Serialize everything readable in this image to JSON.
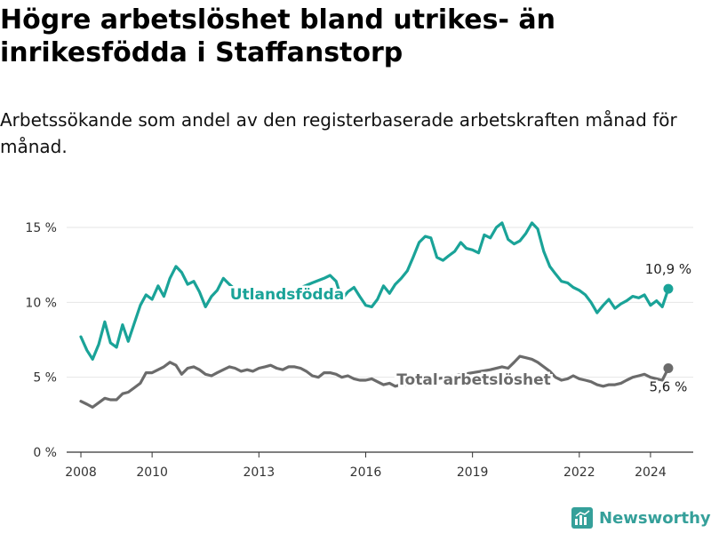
{
  "title": "Högre arbetslöshet bland utrikes- än inrikesfödda i Staffanstorp",
  "subtitle": "Arbetssökande som andel av den registerbaserade arbetskraften månad för månad.",
  "brand": {
    "name": "Newsworthy"
  },
  "colors": {
    "utlandsfodda": "#1aa398",
    "total": "#6b6b6b",
    "axis": "#333333",
    "grid": "#e6e6e6"
  },
  "chart_data": {
    "type": "line",
    "xlabel": "",
    "ylabel": "",
    "xlim": [
      2007.6,
      2025.2
    ],
    "ylim": [
      0,
      15
    ],
    "x_ticks": [
      {
        "value": 2008,
        "label": "2008"
      },
      {
        "value": 2010,
        "label": "2010"
      },
      {
        "value": 2013,
        "label": "2013"
      },
      {
        "value": 2016,
        "label": "2016"
      },
      {
        "value": 2019,
        "label": "2019"
      },
      {
        "value": 2022,
        "label": "2022"
      },
      {
        "value": 2024,
        "label": "2024"
      }
    ],
    "y_ticks": [
      {
        "value": 0,
        "label": "0 %"
      },
      {
        "value": 5,
        "label": "5 %"
      },
      {
        "value": 10,
        "label": "10 %"
      },
      {
        "value": 15,
        "label": "15 %"
      }
    ],
    "series": [
      {
        "name": "Utlandsfödda",
        "inline_label": "Utlandsfödda",
        "end_label": "10,9 %",
        "color_key": "utlandsfodda",
        "points": [
          [
            2008.0,
            7.7
          ],
          [
            2008.17,
            6.8
          ],
          [
            2008.33,
            6.2
          ],
          [
            2008.5,
            7.2
          ],
          [
            2008.67,
            8.7
          ],
          [
            2008.83,
            7.3
          ],
          [
            2009.0,
            7.0
          ],
          [
            2009.17,
            8.5
          ],
          [
            2009.33,
            7.4
          ],
          [
            2009.5,
            8.6
          ],
          [
            2009.67,
            9.8
          ],
          [
            2009.83,
            10.5
          ],
          [
            2010.0,
            10.2
          ],
          [
            2010.17,
            11.1
          ],
          [
            2010.33,
            10.4
          ],
          [
            2010.5,
            11.6
          ],
          [
            2010.67,
            12.4
          ],
          [
            2010.83,
            12.0
          ],
          [
            2011.0,
            11.2
          ],
          [
            2011.17,
            11.4
          ],
          [
            2011.33,
            10.7
          ],
          [
            2011.5,
            9.7
          ],
          [
            2011.67,
            10.4
          ],
          [
            2011.83,
            10.8
          ],
          [
            2012.0,
            11.6
          ],
          [
            2012.17,
            11.2
          ],
          [
            2012.5,
            10.5
          ],
          [
            2013.0,
            10.6
          ],
          [
            2013.5,
            10.4
          ],
          [
            2014.0,
            10.8
          ],
          [
            2014.5,
            11.3
          ],
          [
            2014.83,
            11.6
          ],
          [
            2015.0,
            11.8
          ],
          [
            2015.17,
            11.4
          ],
          [
            2015.33,
            10.2
          ],
          [
            2015.5,
            10.7
          ],
          [
            2015.67,
            11.0
          ],
          [
            2015.83,
            10.4
          ],
          [
            2016.0,
            9.8
          ],
          [
            2016.17,
            9.7
          ],
          [
            2016.33,
            10.2
          ],
          [
            2016.5,
            11.1
          ],
          [
            2016.67,
            10.6
          ],
          [
            2016.83,
            11.2
          ],
          [
            2017.0,
            11.6
          ],
          [
            2017.17,
            12.1
          ],
          [
            2017.33,
            13.0
          ],
          [
            2017.5,
            14.0
          ],
          [
            2017.67,
            14.4
          ],
          [
            2017.83,
            14.3
          ],
          [
            2018.0,
            13.0
          ],
          [
            2018.17,
            12.8
          ],
          [
            2018.33,
            13.1
          ],
          [
            2018.5,
            13.4
          ],
          [
            2018.67,
            14.0
          ],
          [
            2018.83,
            13.6
          ],
          [
            2019.0,
            13.5
          ],
          [
            2019.17,
            13.3
          ],
          [
            2019.33,
            14.5
          ],
          [
            2019.5,
            14.3
          ],
          [
            2019.67,
            15.0
          ],
          [
            2019.83,
            15.3
          ],
          [
            2020.0,
            14.2
          ],
          [
            2020.17,
            13.9
          ],
          [
            2020.33,
            14.1
          ],
          [
            2020.5,
            14.6
          ],
          [
            2020.67,
            15.3
          ],
          [
            2020.83,
            14.9
          ],
          [
            2021.0,
            13.4
          ],
          [
            2021.17,
            12.4
          ],
          [
            2021.33,
            11.9
          ],
          [
            2021.5,
            11.4
          ],
          [
            2021.67,
            11.3
          ],
          [
            2021.83,
            11.0
          ],
          [
            2022.0,
            10.8
          ],
          [
            2022.17,
            10.5
          ],
          [
            2022.33,
            10.0
          ],
          [
            2022.5,
            9.3
          ],
          [
            2022.67,
            9.8
          ],
          [
            2022.83,
            10.2
          ],
          [
            2023.0,
            9.6
          ],
          [
            2023.17,
            9.9
          ],
          [
            2023.33,
            10.1
          ],
          [
            2023.5,
            10.4
          ],
          [
            2023.67,
            10.3
          ],
          [
            2023.83,
            10.5
          ],
          [
            2024.0,
            9.8
          ],
          [
            2024.17,
            10.1
          ],
          [
            2024.33,
            9.7
          ],
          [
            2024.5,
            10.9
          ]
        ]
      },
      {
        "name": "Total arbetslöshet",
        "inline_label": "Total arbetslöshet",
        "end_label": "5,6 %",
        "color_key": "total",
        "points": [
          [
            2008.0,
            3.4
          ],
          [
            2008.17,
            3.2
          ],
          [
            2008.33,
            3.0
          ],
          [
            2008.5,
            3.3
          ],
          [
            2008.67,
            3.6
          ],
          [
            2008.83,
            3.5
          ],
          [
            2009.0,
            3.5
          ],
          [
            2009.17,
            3.9
          ],
          [
            2009.33,
            4.0
          ],
          [
            2009.5,
            4.3
          ],
          [
            2009.67,
            4.6
          ],
          [
            2009.83,
            5.3
          ],
          [
            2010.0,
            5.3
          ],
          [
            2010.17,
            5.5
          ],
          [
            2010.33,
            5.7
          ],
          [
            2010.5,
            6.0
          ],
          [
            2010.67,
            5.8
          ],
          [
            2010.83,
            5.2
          ],
          [
            2011.0,
            5.6
          ],
          [
            2011.17,
            5.7
          ],
          [
            2011.33,
            5.5
          ],
          [
            2011.5,
            5.2
          ],
          [
            2011.67,
            5.1
          ],
          [
            2011.83,
            5.3
          ],
          [
            2012.0,
            5.5
          ],
          [
            2012.17,
            5.7
          ],
          [
            2012.33,
            5.6
          ],
          [
            2012.5,
            5.4
          ],
          [
            2012.67,
            5.5
          ],
          [
            2012.83,
            5.4
          ],
          [
            2013.0,
            5.6
          ],
          [
            2013.17,
            5.7
          ],
          [
            2013.33,
            5.8
          ],
          [
            2013.5,
            5.6
          ],
          [
            2013.67,
            5.5
          ],
          [
            2013.83,
            5.7
          ],
          [
            2014.0,
            5.7
          ],
          [
            2014.17,
            5.6
          ],
          [
            2014.33,
            5.4
          ],
          [
            2014.5,
            5.1
          ],
          [
            2014.67,
            5.0
          ],
          [
            2014.83,
            5.3
          ],
          [
            2015.0,
            5.3
          ],
          [
            2015.17,
            5.2
          ],
          [
            2015.33,
            5.0
          ],
          [
            2015.5,
            5.1
          ],
          [
            2015.67,
            4.9
          ],
          [
            2015.83,
            4.8
          ],
          [
            2016.0,
            4.8
          ],
          [
            2016.17,
            4.9
          ],
          [
            2016.33,
            4.7
          ],
          [
            2016.5,
            4.5
          ],
          [
            2016.67,
            4.6
          ],
          [
            2016.83,
            4.4
          ],
          [
            2017.0,
            4.5
          ],
          [
            2017.5,
            4.6
          ],
          [
            2018.0,
            4.9
          ],
          [
            2018.5,
            5.1
          ],
          [
            2019.0,
            5.3
          ],
          [
            2019.5,
            5.5
          ],
          [
            2019.83,
            5.7
          ],
          [
            2020.0,
            5.6
          ],
          [
            2020.17,
            6.0
          ],
          [
            2020.33,
            6.4
          ],
          [
            2020.5,
            6.3
          ],
          [
            2020.67,
            6.2
          ],
          [
            2020.83,
            6.0
          ],
          [
            2021.0,
            5.7
          ],
          [
            2021.17,
            5.4
          ],
          [
            2021.33,
            5.0
          ],
          [
            2021.5,
            4.8
          ],
          [
            2021.67,
            4.9
          ],
          [
            2021.83,
            5.1
          ],
          [
            2022.0,
            4.9
          ],
          [
            2022.17,
            4.8
          ],
          [
            2022.33,
            4.7
          ],
          [
            2022.5,
            4.5
          ],
          [
            2022.67,
            4.4
          ],
          [
            2022.83,
            4.5
          ],
          [
            2023.0,
            4.5
          ],
          [
            2023.17,
            4.6
          ],
          [
            2023.33,
            4.8
          ],
          [
            2023.5,
            5.0
          ],
          [
            2023.67,
            5.1
          ],
          [
            2023.83,
            5.2
          ],
          [
            2024.0,
            5.0
          ],
          [
            2024.17,
            4.9
          ],
          [
            2024.33,
            4.8
          ],
          [
            2024.5,
            5.6
          ]
        ]
      }
    ]
  }
}
